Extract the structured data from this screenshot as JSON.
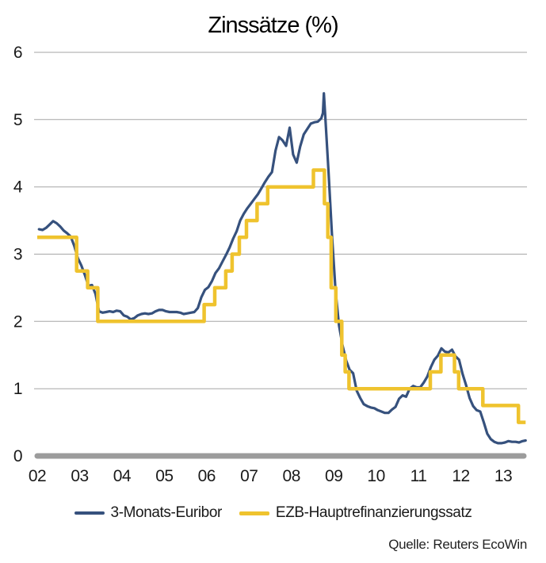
{
  "source": "Quelle: Reuters EcoWin",
  "colors": {
    "euribor_line": "#36517d",
    "ezb_line": "#efc32e",
    "gridline": "#a6a6a6",
    "zero_axis": "#9c9c9c",
    "text": "#1a1a1a"
  },
  "chart_data": {
    "type": "line",
    "title": "Zinssätze (%)",
    "xlabel": "",
    "ylabel": "",
    "xlim": [
      2002,
      2013.6
    ],
    "ylim": [
      0,
      6
    ],
    "yticks": [
      0,
      1,
      2,
      3,
      4,
      5,
      6
    ],
    "xticks": [
      {
        "value": 2002,
        "label": "02"
      },
      {
        "value": 2003,
        "label": "03"
      },
      {
        "value": 2004,
        "label": "04"
      },
      {
        "value": 2005,
        "label": "05"
      },
      {
        "value": 2006,
        "label": "06"
      },
      {
        "value": 2007,
        "label": "07"
      },
      {
        "value": 2008,
        "label": "08"
      },
      {
        "value": 2009,
        "label": "09"
      },
      {
        "value": 2010,
        "label": "10"
      },
      {
        "value": 2011,
        "label": "11"
      },
      {
        "value": 2012,
        "label": "12"
      },
      {
        "value": 2013,
        "label": "13"
      }
    ],
    "grid": "horizontal",
    "legend_position": "bottom-center",
    "series": [
      {
        "name": "3-Monats-Euribor",
        "color": "#36517d",
        "line_type": "line",
        "points": [
          [
            2002.042,
            3.37
          ],
          [
            2002.125,
            3.36
          ],
          [
            2002.208,
            3.39
          ],
          [
            2002.292,
            3.44
          ],
          [
            2002.375,
            3.49
          ],
          [
            2002.458,
            3.46
          ],
          [
            2002.542,
            3.41
          ],
          [
            2002.625,
            3.35
          ],
          [
            2002.708,
            3.31
          ],
          [
            2002.792,
            3.26
          ],
          [
            2002.875,
            3.12
          ],
          [
            2002.958,
            2.94
          ],
          [
            2003.042,
            2.83
          ],
          [
            2003.125,
            2.69
          ],
          [
            2003.208,
            2.53
          ],
          [
            2003.292,
            2.54
          ],
          [
            2003.375,
            2.41
          ],
          [
            2003.458,
            2.15
          ],
          [
            2003.542,
            2.13
          ],
          [
            2003.625,
            2.14
          ],
          [
            2003.708,
            2.15
          ],
          [
            2003.792,
            2.14
          ],
          [
            2003.875,
            2.16
          ],
          [
            2003.958,
            2.15
          ],
          [
            2004.042,
            2.09
          ],
          [
            2004.125,
            2.07
          ],
          [
            2004.208,
            2.03
          ],
          [
            2004.292,
            2.05
          ],
          [
            2004.375,
            2.09
          ],
          [
            2004.458,
            2.11
          ],
          [
            2004.542,
            2.12
          ],
          [
            2004.625,
            2.11
          ],
          [
            2004.708,
            2.12
          ],
          [
            2004.792,
            2.15
          ],
          [
            2004.875,
            2.17
          ],
          [
            2004.958,
            2.17
          ],
          [
            2005.042,
            2.15
          ],
          [
            2005.125,
            2.14
          ],
          [
            2005.208,
            2.14
          ],
          [
            2005.292,
            2.14
          ],
          [
            2005.375,
            2.13
          ],
          [
            2005.458,
            2.11
          ],
          [
            2005.542,
            2.12
          ],
          [
            2005.625,
            2.13
          ],
          [
            2005.708,
            2.14
          ],
          [
            2005.792,
            2.2
          ],
          [
            2005.875,
            2.36
          ],
          [
            2005.958,
            2.47
          ],
          [
            2006.042,
            2.51
          ],
          [
            2006.125,
            2.6
          ],
          [
            2006.208,
            2.72
          ],
          [
            2006.292,
            2.79
          ],
          [
            2006.375,
            2.89
          ],
          [
            2006.458,
            2.99
          ],
          [
            2006.542,
            3.1
          ],
          [
            2006.625,
            3.23
          ],
          [
            2006.708,
            3.34
          ],
          [
            2006.792,
            3.5
          ],
          [
            2006.875,
            3.6
          ],
          [
            2006.958,
            3.68
          ],
          [
            2007.042,
            3.75
          ],
          [
            2007.125,
            3.82
          ],
          [
            2007.208,
            3.89
          ],
          [
            2007.292,
            3.98
          ],
          [
            2007.375,
            4.07
          ],
          [
            2007.458,
            4.15
          ],
          [
            2007.542,
            4.22
          ],
          [
            2007.625,
            4.54
          ],
          [
            2007.708,
            4.74
          ],
          [
            2007.792,
            4.69
          ],
          [
            2007.875,
            4.61
          ],
          [
            2007.958,
            4.88
          ],
          [
            2008.042,
            4.48
          ],
          [
            2008.125,
            4.36
          ],
          [
            2008.208,
            4.6
          ],
          [
            2008.292,
            4.78
          ],
          [
            2008.375,
            4.86
          ],
          [
            2008.458,
            4.94
          ],
          [
            2008.542,
            4.96
          ],
          [
            2008.625,
            4.97
          ],
          [
            2008.708,
            5.02
          ],
          [
            2008.745,
            5.1
          ],
          [
            2008.768,
            5.39
          ],
          [
            2008.805,
            5.0
          ],
          [
            2008.875,
            4.24
          ],
          [
            2008.958,
            3.29
          ],
          [
            2009.042,
            2.46
          ],
          [
            2009.125,
            1.94
          ],
          [
            2009.208,
            1.64
          ],
          [
            2009.292,
            1.42
          ],
          [
            2009.375,
            1.28
          ],
          [
            2009.458,
            1.23
          ],
          [
            2009.542,
            0.97
          ],
          [
            2009.625,
            0.86
          ],
          [
            2009.708,
            0.77
          ],
          [
            2009.792,
            0.74
          ],
          [
            2009.875,
            0.72
          ],
          [
            2009.958,
            0.71
          ],
          [
            2010.042,
            0.68
          ],
          [
            2010.125,
            0.66
          ],
          [
            2010.208,
            0.64
          ],
          [
            2010.292,
            0.64
          ],
          [
            2010.375,
            0.69
          ],
          [
            2010.458,
            0.73
          ],
          [
            2010.542,
            0.85
          ],
          [
            2010.625,
            0.9
          ],
          [
            2010.708,
            0.88
          ],
          [
            2010.792,
            1.0
          ],
          [
            2010.875,
            1.04
          ],
          [
            2010.958,
            1.02
          ],
          [
            2011.042,
            1.02
          ],
          [
            2011.125,
            1.09
          ],
          [
            2011.208,
            1.18
          ],
          [
            2011.292,
            1.32
          ],
          [
            2011.375,
            1.43
          ],
          [
            2011.458,
            1.49
          ],
          [
            2011.542,
            1.6
          ],
          [
            2011.625,
            1.55
          ],
          [
            2011.708,
            1.54
          ],
          [
            2011.792,
            1.58
          ],
          [
            2011.875,
            1.48
          ],
          [
            2011.958,
            1.43
          ],
          [
            2012.042,
            1.22
          ],
          [
            2012.125,
            1.05
          ],
          [
            2012.208,
            0.86
          ],
          [
            2012.292,
            0.74
          ],
          [
            2012.375,
            0.68
          ],
          [
            2012.458,
            0.66
          ],
          [
            2012.542,
            0.5
          ],
          [
            2012.625,
            0.33
          ],
          [
            2012.708,
            0.25
          ],
          [
            2012.792,
            0.21
          ],
          [
            2012.875,
            0.19
          ],
          [
            2012.958,
            0.19
          ],
          [
            2013.042,
            0.2
          ],
          [
            2013.125,
            0.22
          ],
          [
            2013.208,
            0.21
          ],
          [
            2013.292,
            0.21
          ],
          [
            2013.375,
            0.2
          ],
          [
            2013.458,
            0.22
          ],
          [
            2013.53,
            0.23
          ]
        ]
      },
      {
        "name": "EZB-Hauptrefinanzierungssatz",
        "color": "#efc32e",
        "line_type": "step-after",
        "end_x": 2013.53,
        "points": [
          [
            2002.0,
            3.25
          ],
          [
            2002.93,
            2.75
          ],
          [
            2003.19,
            2.5
          ],
          [
            2003.43,
            2.0
          ],
          [
            2005.94,
            2.25
          ],
          [
            2006.19,
            2.5
          ],
          [
            2006.45,
            2.75
          ],
          [
            2006.6,
            3.0
          ],
          [
            2006.77,
            3.25
          ],
          [
            2006.94,
            3.5
          ],
          [
            2007.19,
            3.75
          ],
          [
            2007.44,
            4.0
          ],
          [
            2008.52,
            4.25
          ],
          [
            2008.78,
            3.75
          ],
          [
            2008.86,
            3.25
          ],
          [
            2008.94,
            2.5
          ],
          [
            2009.05,
            2.0
          ],
          [
            2009.19,
            1.5
          ],
          [
            2009.27,
            1.25
          ],
          [
            2009.36,
            1.0
          ],
          [
            2011.28,
            1.25
          ],
          [
            2011.53,
            1.5
          ],
          [
            2011.85,
            1.25
          ],
          [
            2011.95,
            1.0
          ],
          [
            2012.52,
            0.75
          ],
          [
            2013.36,
            0.5
          ]
        ]
      }
    ]
  }
}
